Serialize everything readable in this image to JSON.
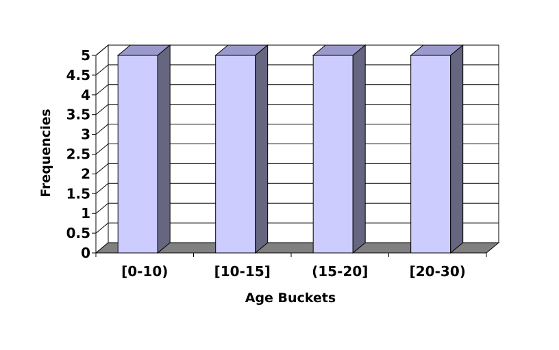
{
  "chart_data": {
    "type": "bar",
    "categories": [
      "[0-10)",
      "[10-15]",
      "(15-20]",
      "[20-30)"
    ],
    "values": [
      5,
      5,
      5,
      5
    ],
    "title": "",
    "xlabel": "Age Buckets",
    "ylabel": "Frequencies",
    "ylim": [
      0,
      5
    ],
    "yticks": [
      0,
      0.5,
      1,
      1.5,
      2,
      2.5,
      3,
      3.5,
      4,
      4.5,
      5
    ],
    "grid": true,
    "legend": "none",
    "three_d": true,
    "colors": {
      "bar_front": "#ccccff",
      "bar_top": "#9999cc",
      "bar_side": "#666680",
      "floor": "#808080",
      "grid": "#000000"
    }
  }
}
